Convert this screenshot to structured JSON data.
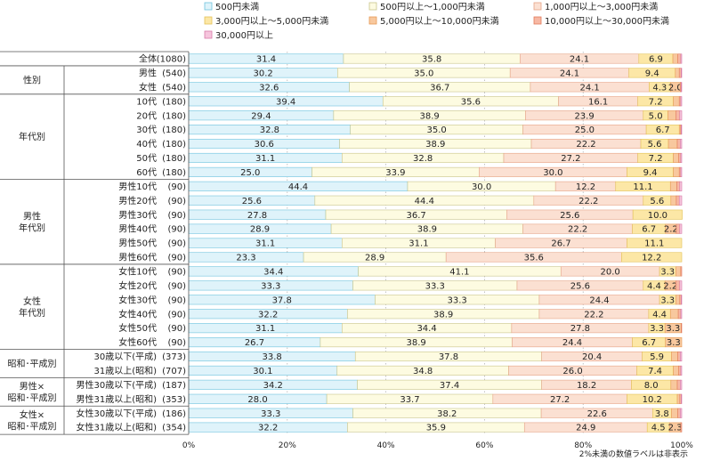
{
  "chart_data": {
    "type": "bar",
    "orientation": "horizontal",
    "stacked": true,
    "xlim": [
      0,
      100
    ],
    "x_ticks": [
      "0%",
      "20%",
      "40%",
      "60%",
      "80%",
      "100%"
    ],
    "note": "2%未満の数値ラベルは非表示",
    "legend": [
      {
        "label": "500円未満",
        "color": "#dff3fa",
        "border": "#6fc3de"
      },
      {
        "label": "500円以上～1,000円未満",
        "color": "#fdfbe1",
        "border": "#c9c58c"
      },
      {
        "label": "1,000円以上～3,000円未満",
        "color": "#fbe0d2",
        "border": "#e6a487"
      },
      {
        "label": "3,000円以上～5,000円未満",
        "color": "#fce7a6",
        "border": "#e3c257"
      },
      {
        "label": "5,000円以上～10,000円未満",
        "color": "#f8c89e",
        "border": "#e79a55"
      },
      {
        "label": "10,000円以上～30,000円未満",
        "color": "#f7b8a4",
        "border": "#e27a5b"
      },
      {
        "label": "30,000円以上",
        "color": "#f6c5dd",
        "border": "#d77aa7"
      }
    ],
    "groups": [
      {
        "label": "",
        "start": 0,
        "end": 0
      },
      {
        "label": "性別",
        "start": 1,
        "end": 2
      },
      {
        "label": "年代別",
        "start": 3,
        "end": 8
      },
      {
        "label": "男性\n年代別",
        "start": 9,
        "end": 14
      },
      {
        "label": "女性\n年代別",
        "start": 15,
        "end": 20
      },
      {
        "label": "昭和･平成別",
        "start": 21,
        "end": 22
      },
      {
        "label": "男性×\n昭和･平成別",
        "start": 23,
        "end": 24
      },
      {
        "label": "女性×\n昭和･平成別",
        "start": 25,
        "end": 26
      }
    ],
    "rows": [
      {
        "label": "全体",
        "n": "(1080)",
        "values": [
          31.4,
          35.8,
          24.1,
          6.9,
          1.0,
          0.6,
          0.2
        ]
      },
      {
        "label": "男性",
        "n": "(540)",
        "values": [
          30.2,
          35.0,
          24.1,
          9.4,
          0.8,
          0.4,
          0.1
        ]
      },
      {
        "label": "女性",
        "n": "(540)",
        "values": [
          32.6,
          36.7,
          24.1,
          4.3,
          2.0,
          0.2,
          0.1
        ]
      },
      {
        "label": "10代",
        "n": "(180)",
        "values": [
          39.4,
          35.6,
          16.1,
          7.2,
          1.2,
          0.3,
          0.2
        ]
      },
      {
        "label": "20代",
        "n": "(180)",
        "values": [
          29.4,
          38.9,
          23.9,
          5.0,
          1.6,
          0.8,
          0.4
        ]
      },
      {
        "label": "30代",
        "n": "(180)",
        "values": [
          32.8,
          35.0,
          25.0,
          6.7,
          0.3,
          0.1,
          0.1
        ]
      },
      {
        "label": "40代",
        "n": "(180)",
        "values": [
          30.6,
          38.9,
          22.2,
          5.6,
          1.8,
          0.6,
          0.3
        ]
      },
      {
        "label": "50代",
        "n": "(180)",
        "values": [
          31.1,
          32.8,
          27.2,
          7.2,
          1.1,
          0.4,
          0.2
        ]
      },
      {
        "label": "60代",
        "n": "(180)",
        "values": [
          25.0,
          33.9,
          30.0,
          9.4,
          1.2,
          0.3,
          0.2
        ]
      },
      {
        "label": "男性10代",
        "n": "(90)",
        "values": [
          44.4,
          30.0,
          12.2,
          11.1,
          1.3,
          0.6,
          0.4
        ]
      },
      {
        "label": "男性20代",
        "n": "(90)",
        "values": [
          25.6,
          44.4,
          22.2,
          5.6,
          1.1,
          0.6,
          0.5
        ]
      },
      {
        "label": "男性30代",
        "n": "(90)",
        "values": [
          27.8,
          36.7,
          25.6,
          10.0,
          0,
          0,
          0
        ]
      },
      {
        "label": "男性40代",
        "n": "(90)",
        "values": [
          28.9,
          38.9,
          22.2,
          6.7,
          2.2,
          0.7,
          0.4
        ]
      },
      {
        "label": "男性50代",
        "n": "(90)",
        "values": [
          31.1,
          31.1,
          26.7,
          11.1,
          0,
          0,
          0
        ]
      },
      {
        "label": "男性60代",
        "n": "(90)",
        "values": [
          23.3,
          28.9,
          35.6,
          12.2,
          0,
          0,
          0
        ]
      },
      {
        "label": "女性10代",
        "n": "(90)",
        "values": [
          34.4,
          41.1,
          20.0,
          3.3,
          1.0,
          0.2,
          0
        ]
      },
      {
        "label": "女性20代",
        "n": "(90)",
        "values": [
          33.3,
          33.3,
          25.6,
          4.4,
          2.2,
          0.8,
          0.4
        ]
      },
      {
        "label": "女性30代",
        "n": "(90)",
        "values": [
          37.8,
          33.3,
          24.4,
          3.3,
          0.8,
          0.3,
          0.1
        ]
      },
      {
        "label": "女性40代",
        "n": "(90)",
        "values": [
          32.2,
          38.9,
          22.2,
          4.4,
          1.6,
          0.5,
          0.2
        ]
      },
      {
        "label": "女性50代",
        "n": "(90)",
        "values": [
          31.1,
          34.4,
          27.8,
          3.3,
          3.3,
          0.1,
          0
        ]
      },
      {
        "label": "女性60代",
        "n": "(90)",
        "values": [
          26.7,
          38.9,
          24.4,
          6.7,
          3.3,
          0,
          0
        ]
      },
      {
        "label": "30歳以下(平成)",
        "n": "(373)",
        "values": [
          33.8,
          37.8,
          20.4,
          5.9,
          1.3,
          0.5,
          0.3
        ]
      },
      {
        "label": "31歳以上(昭和)",
        "n": "(707)",
        "values": [
          30.1,
          34.8,
          26.0,
          7.4,
          1.1,
          0.4,
          0.2
        ]
      },
      {
        "label": "男性30歳以下(平成)",
        "n": "(187)",
        "values": [
          34.2,
          37.4,
          18.2,
          8.0,
          1.3,
          0.6,
          0.3
        ]
      },
      {
        "label": "男性31歳以上(昭和)",
        "n": "(353)",
        "values": [
          28.0,
          33.7,
          27.2,
          10.2,
          0.5,
          0.3,
          0.1
        ]
      },
      {
        "label": "女性30歳以下(平成)",
        "n": "(186)",
        "values": [
          33.3,
          38.2,
          22.6,
          3.8,
          1.3,
          0.5,
          0.3
        ]
      },
      {
        "label": "女性31歳以上(昭和)",
        "n": "(354)",
        "values": [
          32.2,
          35.9,
          24.9,
          4.5,
          2.3,
          0.2,
          0
        ]
      }
    ]
  }
}
